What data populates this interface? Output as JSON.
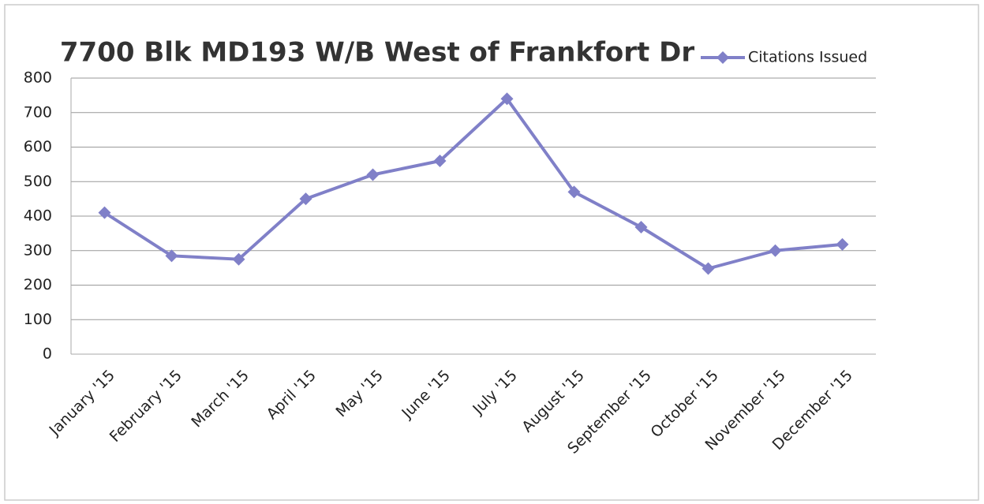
{
  "chart_data": {
    "type": "line",
    "title": "7700 Blk MD193 W/B West of Frankfort Dr",
    "categories": [
      "January '15",
      "February '15",
      "March '15",
      "April '15",
      "May '15",
      "June '15",
      "July '15",
      "August '15",
      "September '15",
      "October '15",
      "November '15",
      "December '15"
    ],
    "series": [
      {
        "name": "Citations Issued",
        "color": "#8080c8",
        "values": [
          410,
          285,
          275,
          450,
          520,
          560,
          740,
          470,
          368,
          248,
          300,
          318
        ]
      }
    ],
    "ylim": [
      0,
      800
    ],
    "yticks": [
      0,
      100,
      200,
      300,
      400,
      500,
      600,
      700,
      800
    ],
    "grid": true,
    "legend": "top-right"
  }
}
